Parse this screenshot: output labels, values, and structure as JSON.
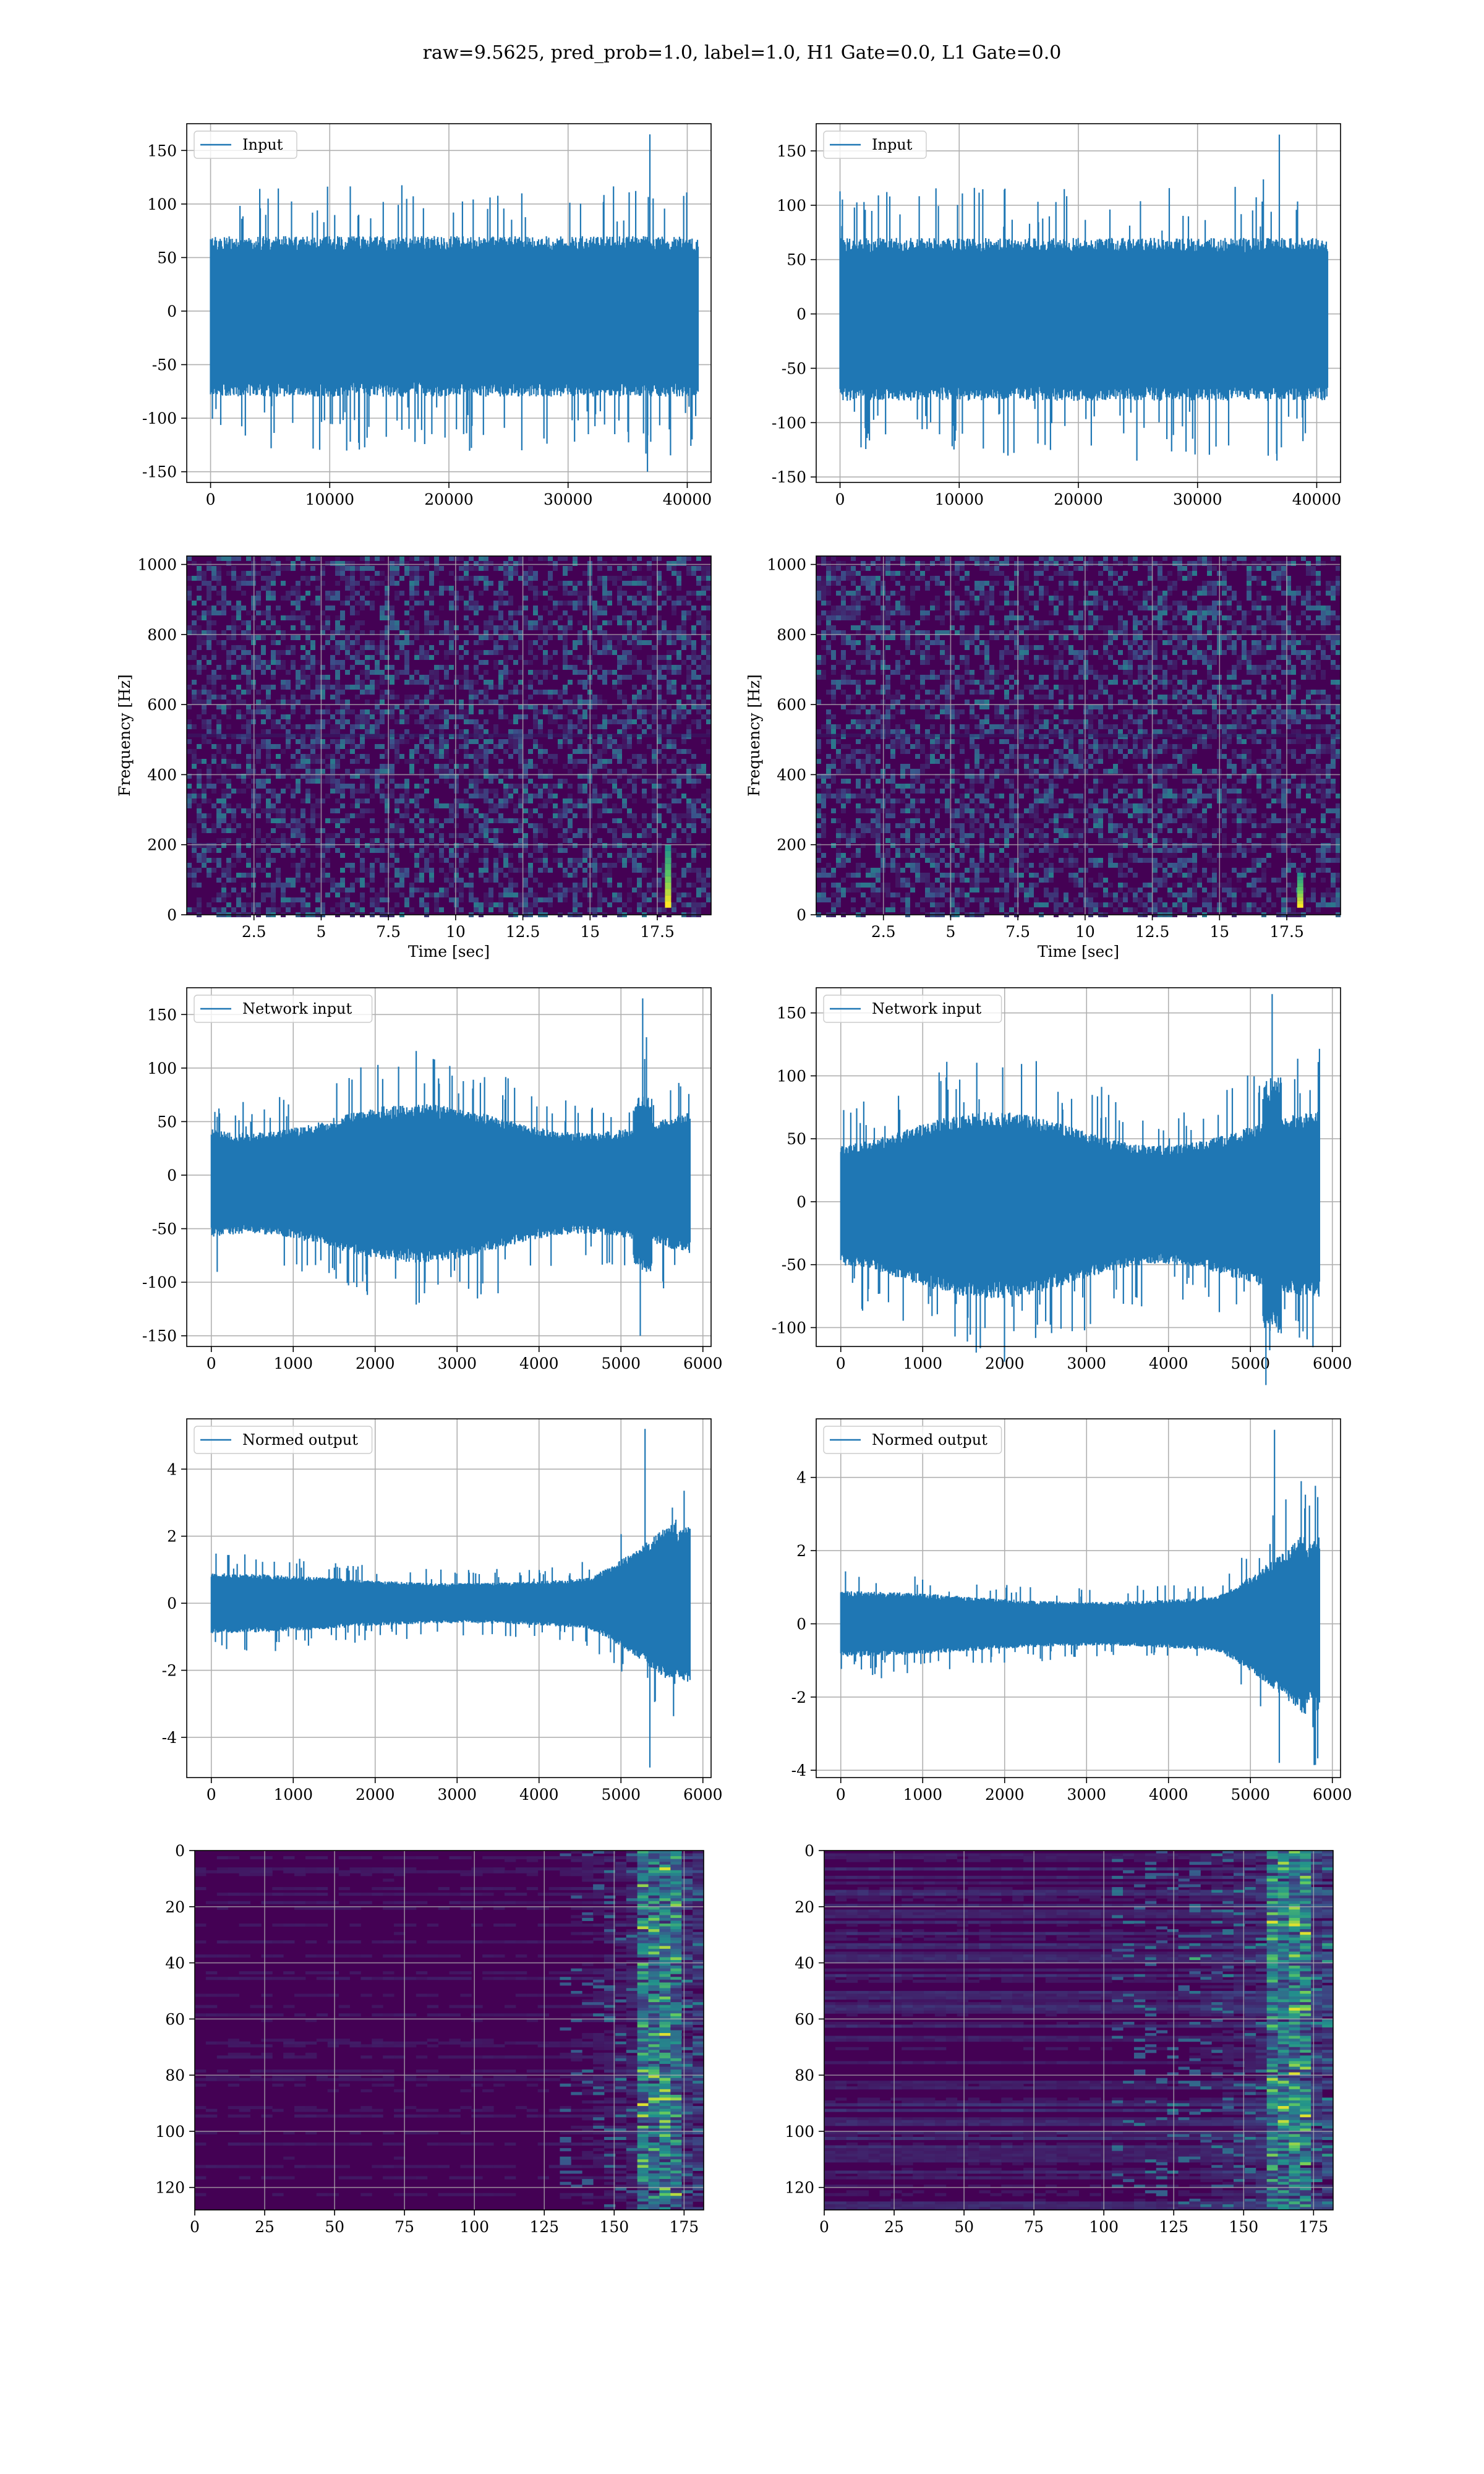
{
  "figure": {
    "title": "raw=9.5625, pred_prob=1.0, label=1.0, H1 Gate=0.0, L1 Gate=0.0"
  },
  "colors": {
    "line": "#1f77b4",
    "grid": "#b0b0b0",
    "viridis_low": "#440154",
    "viridis_mid": "#21918c",
    "viridis_high": "#fde725"
  },
  "chart_data": [
    {
      "id": "input_left",
      "type": "line",
      "series": [
        {
          "name": "Input"
        }
      ],
      "legend": "top-left",
      "xlim": [
        -2000,
        42000
      ],
      "ylim": [
        -160,
        175
      ],
      "xticks": [
        0,
        10000,
        20000,
        30000,
        40000
      ],
      "yticks": [
        -150,
        -100,
        -50,
        0,
        50,
        100,
        150
      ],
      "n_points": 40960,
      "band": [
        -80,
        70
      ],
      "max": 165,
      "min": -150,
      "grid": true,
      "xlabel": "",
      "ylabel": ""
    },
    {
      "id": "input_right",
      "type": "line",
      "series": [
        {
          "name": "Input"
        }
      ],
      "legend": "top-left",
      "xlim": [
        -2000,
        42000
      ],
      "ylim": [
        -155,
        175
      ],
      "xticks": [
        0,
        10000,
        20000,
        30000,
        40000
      ],
      "yticks": [
        -150,
        -100,
        -50,
        0,
        50,
        100,
        150
      ],
      "n_points": 40960,
      "band": [
        -80,
        70
      ],
      "max": 165,
      "min": -135,
      "grid": true,
      "xlabel": "",
      "ylabel": ""
    },
    {
      "id": "spectrogram_left",
      "type": "heatmap",
      "xlabel": "Time [sec]",
      "ylabel": "Frequency [Hz]",
      "xlim": [
        0,
        19.5
      ],
      "ylim": [
        0,
        1024
      ],
      "xticks": [
        2.5,
        5.0,
        7.5,
        10.0,
        12.5,
        15.0,
        17.5
      ],
      "yticks": [
        0,
        200,
        400,
        600,
        800,
        1000
      ],
      "colormap": "viridis",
      "bright_feature": {
        "time": 17.9,
        "freq_range": [
          20,
          200
        ]
      },
      "grid": true
    },
    {
      "id": "spectrogram_right",
      "type": "heatmap",
      "xlabel": "Time [sec]",
      "ylabel": "Frequency [Hz]",
      "xlim": [
        0,
        19.5
      ],
      "ylim": [
        0,
        1024
      ],
      "xticks": [
        2.5,
        5.0,
        7.5,
        10.0,
        12.5,
        15.0,
        17.5
      ],
      "yticks": [
        0,
        200,
        400,
        600,
        800,
        1000
      ],
      "colormap": "viridis",
      "bright_feature": {
        "time": 18.0,
        "freq_range": [
          20,
          120
        ]
      },
      "grid": true
    },
    {
      "id": "network_input_left",
      "type": "line",
      "series": [
        {
          "name": "Network input"
        }
      ],
      "legend": "top-left",
      "xlim": [
        -300,
        6100
      ],
      "ylim": [
        -160,
        175
      ],
      "xticks": [
        0,
        1000,
        2000,
        3000,
        4000,
        5000,
        6000
      ],
      "yticks": [
        -150,
        -100,
        -50,
        0,
        50,
        100,
        150
      ],
      "n_points": 5850,
      "band": [
        -75,
        60
      ],
      "max": 165,
      "min": -150,
      "grid": true,
      "xlabel": "",
      "ylabel": ""
    },
    {
      "id": "network_input_right",
      "type": "line",
      "series": [
        {
          "name": "Network input"
        }
      ],
      "legend": "top-left",
      "xlim": [
        -300,
        6100
      ],
      "ylim": [
        -115,
        170
      ],
      "xticks": [
        0,
        1000,
        2000,
        3000,
        4000,
        5000,
        6000
      ],
      "yticks": [
        -100,
        -50,
        0,
        50,
        100,
        150
      ],
      "n_points": 5850,
      "band": [
        -70,
        65
      ],
      "max": 165,
      "min": -118,
      "grid": true,
      "xlabel": "",
      "ylabel": ""
    },
    {
      "id": "normed_output_left",
      "type": "line",
      "series": [
        {
          "name": "Normed output"
        }
      ],
      "legend": "top-left",
      "xlim": [
        -300,
        6100
      ],
      "ylim": [
        -5.2,
        5.5
      ],
      "xticks": [
        0,
        1000,
        2000,
        3000,
        4000,
        5000,
        6000
      ],
      "yticks": [
        -4,
        -2,
        0,
        2,
        4
      ],
      "n_points": 5850,
      "band": [
        -1.0,
        1.0
      ],
      "max": 5.2,
      "min": -4.9,
      "grid": true,
      "xlabel": "",
      "ylabel": ""
    },
    {
      "id": "normed_output_right",
      "type": "line",
      "series": [
        {
          "name": "Normed output"
        }
      ],
      "legend": "top-left",
      "xlim": [
        -300,
        6100
      ],
      "ylim": [
        -4.2,
        5.6
      ],
      "xticks": [
        0,
        1000,
        2000,
        3000,
        4000,
        5000,
        6000
      ],
      "yticks": [
        -4,
        -2,
        0,
        2,
        4
      ],
      "n_points": 5850,
      "band": [
        -1.0,
        1.0
      ],
      "max": 5.3,
      "min": -3.8,
      "grid": true,
      "xlabel": "",
      "ylabel": ""
    },
    {
      "id": "feature_map_left",
      "type": "heatmap",
      "xlim": [
        0,
        182
      ],
      "ylim": [
        128,
        0
      ],
      "xticks": [
        0,
        25,
        50,
        75,
        100,
        125,
        150,
        175
      ],
      "yticks": [
        0,
        20,
        40,
        60,
        80,
        100,
        120
      ],
      "colormap": "viridis",
      "grid": true,
      "xlabel": "",
      "ylabel": ""
    },
    {
      "id": "feature_map_right",
      "type": "heatmap",
      "xlim": [
        0,
        182
      ],
      "ylim": [
        128,
        0
      ],
      "xticks": [
        0,
        25,
        50,
        75,
        100,
        125,
        150,
        175
      ],
      "yticks": [
        0,
        20,
        40,
        60,
        80,
        100,
        120
      ],
      "colormap": "viridis",
      "grid": true,
      "xlabel": "",
      "ylabel": ""
    }
  ]
}
